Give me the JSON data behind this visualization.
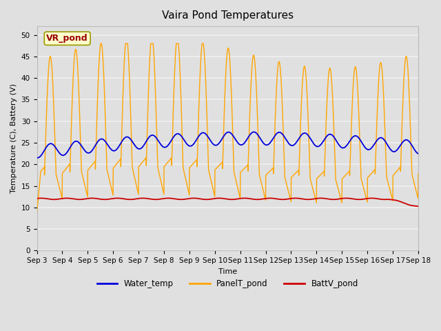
{
  "title": "Vaira Pond Temperatures",
  "xlabel": "Time",
  "ylabel": "Temperature (C), Battery (V)",
  "ylim": [
    0,
    52
  ],
  "yticks": [
    0,
    5,
    10,
    15,
    20,
    25,
    30,
    35,
    40,
    45,
    50
  ],
  "xtick_labels": [
    "Sep 3",
    "Sep 4",
    "Sep 5",
    "Sep 6",
    "Sep 7",
    "Sep 8",
    "Sep 9",
    "Sep 10",
    "Sep 11",
    "Sep 12",
    "Sep 13",
    "Sep 14",
    "Sep 15",
    "Sep 16",
    "Sep 17",
    "Sep 18"
  ],
  "fig_bg_color": "#e0e0e0",
  "plot_bg_color": "#e0e0e0",
  "grid_color": "#f0f0f0",
  "water_temp_color": "#0000dd",
  "panel_temp_color": "#ffa500",
  "batt_color": "#cc0000",
  "annotation_text": "VR_pond",
  "annotation_bg": "#ffffcc",
  "annotation_border": "#999900",
  "annotation_text_color": "#990000",
  "legend_labels": [
    "Water_temp",
    "PanelT_pond",
    "BattV_pond"
  ],
  "title_fontsize": 11,
  "axis_label_fontsize": 8,
  "tick_fontsize": 7.5,
  "legend_fontsize": 8.5
}
